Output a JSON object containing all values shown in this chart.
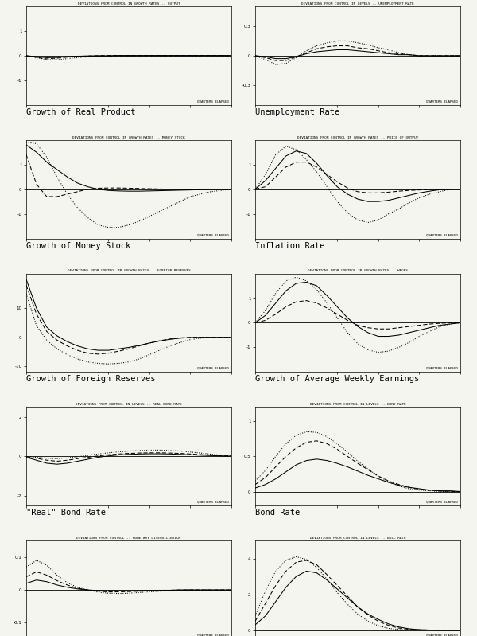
{
  "background_color": "#f5f5f0",
  "plots": [
    {
      "title": "DEVIATIONS FROM CONTROL IN GROWTH RATES -- OUTPUT",
      "xlabel": "QUARTERS ELAPSED",
      "ylim": [
        -2.0,
        2.0
      ],
      "yticks": [
        -1.0,
        0.0,
        1.0
      ],
      "label": "Growth of Real Product",
      "solid": [
        0.0,
        -0.04,
        -0.08,
        -0.07,
        -0.04,
        -0.02,
        -0.01,
        0.0,
        0.0,
        0.01,
        0.01,
        0.01,
        0.01,
        0.01,
        0.01,
        0.01,
        0.01,
        0.01,
        0.01,
        0.01,
        0.01
      ],
      "dashed": [
        0.0,
        -0.07,
        -0.13,
        -0.1,
        -0.06,
        -0.03,
        -0.01,
        0.0,
        0.01,
        0.01,
        0.01,
        0.01,
        0.01,
        0.01,
        0.01,
        0.01,
        0.01,
        0.01,
        0.01,
        0.01,
        0.01
      ],
      "dotted": [
        0.0,
        -0.08,
        -0.16,
        -0.17,
        -0.12,
        -0.08,
        -0.05,
        -0.03,
        -0.02,
        -0.01,
        -0.01,
        -0.01,
        -0.01,
        -0.01,
        -0.01,
        -0.01,
        -0.01,
        -0.01,
        -0.01,
        -0.01,
        -0.01
      ]
    },
    {
      "title": "DEVIATIONS FROM CONTROL IN LEVELS -- UNEMPLOYMENT RATE",
      "xlabel": "QUARTERS ELAPSED",
      "ylim": [
        -0.5,
        0.5
      ],
      "yticks": [
        -0.3,
        0.0,
        0.3
      ],
      "label": "Unemployment Rate",
      "solid": [
        0.0,
        -0.01,
        -0.03,
        -0.03,
        -0.01,
        0.02,
        0.04,
        0.05,
        0.06,
        0.06,
        0.05,
        0.04,
        0.03,
        0.02,
        0.01,
        0.01,
        0.0,
        0.0,
        0.0,
        0.0,
        0.0
      ],
      "dashed": [
        0.0,
        -0.02,
        -0.05,
        -0.05,
        -0.01,
        0.03,
        0.07,
        0.09,
        0.1,
        0.1,
        0.08,
        0.07,
        0.05,
        0.03,
        0.02,
        0.01,
        0.0,
        0.0,
        0.0,
        0.0,
        0.0
      ],
      "dotted": [
        0.0,
        -0.04,
        -0.09,
        -0.08,
        -0.02,
        0.05,
        0.1,
        0.13,
        0.15,
        0.15,
        0.13,
        0.11,
        0.08,
        0.06,
        0.03,
        0.01,
        0.0,
        0.0,
        0.0,
        0.0,
        0.0
      ]
    },
    {
      "title": "DEVIATIONS FROM CONTROL IN GROWTH RATES -- MONEY STOCK",
      "xlabel": "QUARTERS ELAPSED",
      "ylim": [
        -2.0,
        2.0
      ],
      "yticks": [
        -1.0,
        0.0,
        1.0
      ],
      "label": "Growth of Money Stock",
      "solid": [
        1.8,
        1.5,
        1.1,
        0.8,
        0.5,
        0.25,
        0.1,
        0.0,
        -0.05,
        -0.07,
        -0.08,
        -0.08,
        -0.07,
        -0.06,
        -0.05,
        -0.04,
        -0.03,
        -0.02,
        -0.01,
        0.0,
        0.0
      ],
      "dashed": [
        1.4,
        0.2,
        -0.3,
        -0.3,
        -0.2,
        -0.1,
        0.0,
        0.04,
        0.05,
        0.05,
        0.04,
        0.03,
        0.02,
        0.01,
        0.0,
        0.0,
        0.0,
        0.0,
        0.0,
        0.0,
        0.0
      ],
      "dotted": [
        1.9,
        1.85,
        1.3,
        0.5,
        -0.2,
        -0.75,
        -1.15,
        -1.45,
        -1.55,
        -1.55,
        -1.45,
        -1.3,
        -1.1,
        -0.9,
        -0.7,
        -0.5,
        -0.3,
        -0.2,
        -0.1,
        -0.05,
        0.0
      ]
    },
    {
      "title": "DEVIATIONS FROM CONTROL IN GROWTH RATES -- PRICE OF OUTPUT",
      "xlabel": "QUARTERS ELAPSED",
      "ylim": [
        -2.0,
        2.0
      ],
      "yticks": [
        -1.0,
        0.0,
        1.0
      ],
      "label": "Inflation Rate",
      "solid": [
        0.0,
        0.35,
        0.85,
        1.35,
        1.55,
        1.45,
        1.05,
        0.55,
        0.1,
        -0.2,
        -0.4,
        -0.5,
        -0.5,
        -0.45,
        -0.35,
        -0.25,
        -0.15,
        -0.08,
        -0.02,
        0.0,
        0.0
      ],
      "dashed": [
        0.0,
        0.1,
        0.5,
        0.9,
        1.1,
        1.1,
        0.9,
        0.6,
        0.3,
        0.05,
        -0.1,
        -0.15,
        -0.15,
        -0.12,
        -0.08,
        -0.05,
        -0.03,
        -0.01,
        0.0,
        0.0,
        0.0
      ],
      "dotted": [
        0.0,
        0.6,
        1.4,
        1.75,
        1.6,
        1.2,
        0.7,
        0.1,
        -0.5,
        -0.95,
        -1.25,
        -1.35,
        -1.25,
        -1.0,
        -0.8,
        -0.55,
        -0.35,
        -0.2,
        -0.1,
        0.0,
        0.0
      ]
    },
    {
      "title": "DEVIATIONS FROM CONTROL IN GROWTH RATES -- FOREIGN RESERVES",
      "xlabel": "QUARTERS ELAPSED",
      "ylim": [
        -12.0,
        22.0
      ],
      "yticks": [
        -10.0,
        0.0,
        10.0
      ],
      "label": "Growth of Foreign Reserves",
      "solid": [
        20.0,
        10.0,
        3.5,
        0.5,
        -1.5,
        -3.0,
        -4.0,
        -4.5,
        -4.5,
        -4.0,
        -3.5,
        -2.8,
        -2.0,
        -1.3,
        -0.7,
        -0.3,
        -0.1,
        0.0,
        0.0,
        0.0,
        0.0
      ],
      "dashed": [
        18.0,
        8.0,
        2.0,
        -1.0,
        -3.0,
        -4.5,
        -5.5,
        -5.8,
        -5.5,
        -4.8,
        -4.0,
        -3.0,
        -2.0,
        -1.2,
        -0.6,
        -0.2,
        0.0,
        0.0,
        0.0,
        0.0,
        0.0
      ],
      "dotted": [
        15.0,
        4.0,
        -1.0,
        -4.0,
        -6.0,
        -7.5,
        -8.5,
        -9.0,
        -9.2,
        -9.0,
        -8.5,
        -7.5,
        -6.0,
        -4.5,
        -3.0,
        -1.8,
        -0.8,
        -0.3,
        -0.1,
        0.0,
        0.0
      ]
    },
    {
      "title": "DEVIATIONS FROM CONTROL IN GROWTH RATES -- WAGES",
      "xlabel": "QUARTERS ELAPSED",
      "ylim": [
        -2.0,
        2.0
      ],
      "yticks": [
        -1.0,
        0.0,
        1.0
      ],
      "label": "Growth of Average Weekly Earnings",
      "solid": [
        0.0,
        0.3,
        0.8,
        1.3,
        1.6,
        1.65,
        1.5,
        1.1,
        0.65,
        0.2,
        -0.15,
        -0.4,
        -0.55,
        -0.55,
        -0.5,
        -0.4,
        -0.3,
        -0.2,
        -0.1,
        -0.05,
        0.0
      ],
      "dashed": [
        0.0,
        0.1,
        0.35,
        0.65,
        0.85,
        0.9,
        0.8,
        0.6,
        0.35,
        0.1,
        -0.1,
        -0.2,
        -0.25,
        -0.25,
        -0.2,
        -0.15,
        -0.1,
        -0.05,
        -0.02,
        0.0,
        0.0
      ],
      "dotted": [
        0.0,
        0.5,
        1.2,
        1.7,
        1.85,
        1.7,
        1.35,
        0.8,
        0.2,
        -0.4,
        -0.85,
        -1.1,
        -1.2,
        -1.15,
        -1.0,
        -0.8,
        -0.55,
        -0.35,
        -0.15,
        -0.05,
        0.0
      ]
    },
    {
      "title": "DEVIATIONS FROM CONTROL IN LEVELS -- REAL BOND RATE",
      "xlabel": "QUARTERS ELAPSED",
      "ylim": [
        -2.5,
        2.5
      ],
      "yticks": [
        -2.0,
        0.0,
        2.0
      ],
      "label": "\"Real\" Bond Rate",
      "solid": [
        -0.05,
        -0.2,
        -0.35,
        -0.4,
        -0.35,
        -0.25,
        -0.15,
        -0.05,
        0.02,
        0.07,
        0.1,
        0.12,
        0.13,
        0.13,
        0.12,
        0.1,
        0.08,
        0.06,
        0.04,
        0.02,
        0.01
      ],
      "dashed": [
        -0.02,
        -0.1,
        -0.2,
        -0.25,
        -0.2,
        -0.12,
        -0.05,
        0.02,
        0.08,
        0.12,
        0.15,
        0.17,
        0.18,
        0.18,
        0.17,
        0.15,
        0.12,
        0.09,
        0.06,
        0.03,
        0.01
      ],
      "dotted": [
        0.0,
        -0.05,
        -0.1,
        -0.12,
        -0.08,
        -0.02,
        0.05,
        0.12,
        0.18,
        0.23,
        0.27,
        0.3,
        0.32,
        0.32,
        0.3,
        0.27,
        0.22,
        0.17,
        0.11,
        0.06,
        0.02
      ]
    },
    {
      "title": "DEVIATIONS FROM CONTROL IN LEVELS -- BOND RATE",
      "xlabel": "QUARTERS ELAPSED",
      "ylim": [
        -0.2,
        1.2
      ],
      "yticks": [
        0.0,
        0.5,
        1.0
      ],
      "label": "Bond Rate",
      "solid": [
        0.05,
        0.1,
        0.18,
        0.28,
        0.38,
        0.44,
        0.46,
        0.44,
        0.4,
        0.35,
        0.29,
        0.23,
        0.18,
        0.13,
        0.09,
        0.06,
        0.04,
        0.02,
        0.01,
        0.01,
        0.0
      ],
      "dashed": [
        0.1,
        0.2,
        0.35,
        0.5,
        0.62,
        0.7,
        0.72,
        0.68,
        0.6,
        0.5,
        0.4,
        0.31,
        0.22,
        0.15,
        0.1,
        0.06,
        0.03,
        0.02,
        0.01,
        0.0,
        0.0
      ],
      "dotted": [
        0.15,
        0.3,
        0.5,
        0.68,
        0.8,
        0.85,
        0.84,
        0.78,
        0.68,
        0.56,
        0.43,
        0.32,
        0.22,
        0.14,
        0.08,
        0.04,
        0.02,
        0.01,
        0.0,
        0.0,
        0.0
      ]
    },
    {
      "title": "DEVIATIONS FROM CONTROL -- MONETARY DISEQUILIBRIUM",
      "xlabel": "QUARTERS ELAPSED",
      "ylim": [
        -0.15,
        0.15
      ],
      "yticks": [
        -0.1,
        0.0,
        0.1
      ],
      "label": "",
      "solid": [
        0.02,
        0.03,
        0.025,
        0.015,
        0.008,
        0.003,
        0.0,
        -0.002,
        -0.003,
        -0.003,
        -0.003,
        -0.002,
        -0.002,
        -0.001,
        -0.001,
        0.0,
        0.0,
        0.0,
        0.0,
        0.0,
        0.0
      ],
      "dashed": [
        0.04,
        0.055,
        0.045,
        0.028,
        0.015,
        0.005,
        0.0,
        -0.004,
        -0.006,
        -0.006,
        -0.005,
        -0.004,
        -0.003,
        -0.002,
        -0.001,
        0.0,
        0.0,
        0.0,
        0.0,
        0.0,
        0.0
      ],
      "dotted": [
        0.07,
        0.09,
        0.075,
        0.045,
        0.022,
        0.008,
        0.0,
        -0.007,
        -0.01,
        -0.011,
        -0.01,
        -0.008,
        -0.006,
        -0.004,
        -0.002,
        -0.001,
        0.0,
        0.0,
        0.0,
        0.0,
        0.0
      ]
    },
    {
      "title": "DEVIATIONS FROM CONTROL IN LEVELS -- BILL RATE",
      "xlabel": "QUARTERS ELAPSED",
      "ylim": [
        -0.5,
        5.0
      ],
      "yticks": [
        0.0,
        2.0,
        4.0
      ],
      "label": "",
      "solid": [
        0.3,
        0.8,
        1.6,
        2.4,
        3.0,
        3.3,
        3.2,
        2.8,
        2.3,
        1.8,
        1.3,
        0.9,
        0.6,
        0.35,
        0.18,
        0.08,
        0.03,
        0.01,
        0.0,
        0.0,
        0.0
      ],
      "dashed": [
        0.5,
        1.5,
        2.5,
        3.3,
        3.8,
        3.9,
        3.65,
        3.1,
        2.5,
        1.9,
        1.3,
        0.85,
        0.5,
        0.27,
        0.12,
        0.05,
        0.02,
        0.01,
        0.0,
        0.0,
        0.0
      ],
      "dotted": [
        0.8,
        2.2,
        3.3,
        3.9,
        4.1,
        3.95,
        3.5,
        2.85,
        2.1,
        1.45,
        0.9,
        0.5,
        0.25,
        0.1,
        0.04,
        0.01,
        0.0,
        0.0,
        0.0,
        0.0,
        0.0
      ]
    }
  ]
}
